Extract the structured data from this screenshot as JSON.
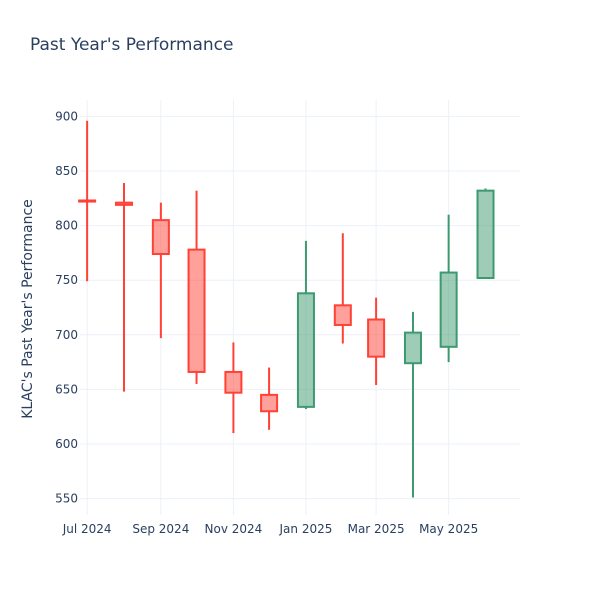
{
  "chart_data": {
    "type": "candlestick",
    "title": "Past Year's Performance",
    "xlabel": "",
    "ylabel": "KLAC's Past Year's Performance",
    "ylim": [
      535,
      915
    ],
    "xlim": [
      "2024-06-25",
      "2025-06-30"
    ],
    "grid": true,
    "y_ticks": [
      550,
      600,
      650,
      700,
      750,
      800,
      850,
      900
    ],
    "x_ticks": [
      {
        "date": "2024-07-01",
        "label": "Jul 2024"
      },
      {
        "date": "2024-09-01",
        "label": "Sep 2024"
      },
      {
        "date": "2024-11-01",
        "label": "Nov 2024"
      },
      {
        "date": "2025-01-01",
        "label": "Jan 2025"
      },
      {
        "date": "2025-03-01",
        "label": "Mar 2025"
      },
      {
        "date": "2025-05-01",
        "label": "May 2025"
      }
    ],
    "increasing_color": "#3D9970",
    "decreasing_color": "#FF4136",
    "candles": [
      {
        "date": "2024-07-01",
        "open": 823,
        "high": 896,
        "low": 749,
        "close": 822
      },
      {
        "date": "2024-08-01",
        "open": 821,
        "high": 839,
        "low": 648,
        "close": 819
      },
      {
        "date": "2024-09-01",
        "open": 805,
        "high": 821,
        "low": 697,
        "close": 774
      },
      {
        "date": "2024-10-01",
        "open": 778,
        "high": 832,
        "low": 655,
        "close": 666
      },
      {
        "date": "2024-11-01",
        "open": 666,
        "high": 693,
        "low": 610,
        "close": 647
      },
      {
        "date": "2024-12-01",
        "open": 645,
        "high": 670,
        "low": 613,
        "close": 630
      },
      {
        "date": "2025-01-01",
        "open": 634,
        "high": 786,
        "low": 632,
        "close": 738
      },
      {
        "date": "2025-02-01",
        "open": 727,
        "high": 793,
        "low": 692,
        "close": 709
      },
      {
        "date": "2025-03-01",
        "open": 714,
        "high": 734,
        "low": 654,
        "close": 680
      },
      {
        "date": "2025-04-01",
        "open": 674,
        "high": 721,
        "low": 551,
        "close": 702
      },
      {
        "date": "2025-05-01",
        "open": 689,
        "high": 810,
        "low": 675,
        "close": 757
      },
      {
        "date": "2025-06-01",
        "open": 752,
        "high": 834,
        "low": 752,
        "close": 832
      }
    ]
  }
}
